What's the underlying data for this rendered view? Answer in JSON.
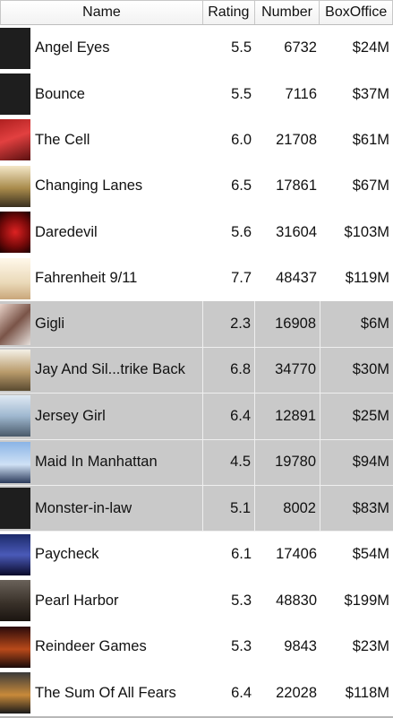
{
  "columns": {
    "name": "Name",
    "rating": "Rating",
    "number": "Number",
    "boxoffice": "BoxOffice"
  },
  "rows": [
    {
      "name": "Angel Eyes",
      "rating": "5.5",
      "number": "6732",
      "boxoffice": "$24M",
      "poster": "dark-placeholder",
      "selected": false
    },
    {
      "name": "Bounce",
      "rating": "5.5",
      "number": "7116",
      "boxoffice": "$37M",
      "poster": "dark-placeholder",
      "selected": false
    },
    {
      "name": "The Cell",
      "rating": "6.0",
      "number": "21708",
      "boxoffice": "$61M",
      "poster": "poster-thumbnail",
      "selected": false
    },
    {
      "name": "Changing Lanes",
      "rating": "6.5",
      "number": "17861",
      "boxoffice": "$67M",
      "poster": "poster-thumbnail",
      "selected": false
    },
    {
      "name": "Daredevil",
      "rating": "5.6",
      "number": "31604",
      "boxoffice": "$103M",
      "poster": "poster-thumbnail",
      "selected": false
    },
    {
      "name": "Fahrenheit 9/11",
      "rating": "7.7",
      "number": "48437",
      "boxoffice": "$119M",
      "poster": "poster-thumbnail",
      "selected": false
    },
    {
      "name": "Gigli",
      "rating": "2.3",
      "number": "16908",
      "boxoffice": "$6M",
      "poster": "poster-thumbnail",
      "selected": true
    },
    {
      "name": "Jay And Sil...trike Back",
      "rating": "6.8",
      "number": "34770",
      "boxoffice": "$30M",
      "poster": "poster-thumbnail",
      "selected": true
    },
    {
      "name": "Jersey Girl",
      "rating": "6.4",
      "number": "12891",
      "boxoffice": "$25M",
      "poster": "poster-thumbnail",
      "selected": true
    },
    {
      "name": "Maid In Manhattan",
      "rating": "4.5",
      "number": "19780",
      "boxoffice": "$94M",
      "poster": "poster-thumbnail",
      "selected": true
    },
    {
      "name": "Monster-in-law",
      "rating": "5.1",
      "number": "8002",
      "boxoffice": "$83M",
      "poster": "dark-placeholder",
      "selected": true
    },
    {
      "name": "Paycheck",
      "rating": "6.1",
      "number": "17406",
      "boxoffice": "$54M",
      "poster": "poster-thumbnail",
      "selected": false
    },
    {
      "name": "Pearl Harbor",
      "rating": "5.3",
      "number": "48830",
      "boxoffice": "$199M",
      "poster": "poster-thumbnail",
      "selected": false
    },
    {
      "name": "Reindeer Games",
      "rating": "5.3",
      "number": "9843",
      "boxoffice": "$23M",
      "poster": "poster-thumbnail",
      "selected": false
    },
    {
      "name": "The Sum Of All Fears",
      "rating": "6.4",
      "number": "22028",
      "boxoffice": "$118M",
      "poster": "poster-thumbnail",
      "selected": false
    }
  ],
  "colors": {
    "selection": "#c9c9c9",
    "header_border": "#c8c8c8"
  }
}
